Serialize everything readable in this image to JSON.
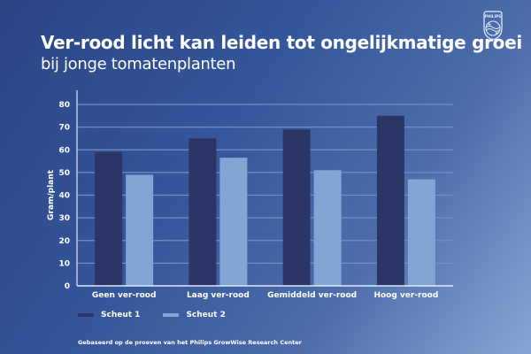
{
  "header": {
    "title": "Ver-rood licht kan leiden tot ongelijkmatige groei",
    "subtitle": "bij jonge tomatenplanten",
    "logo_text": "PHILIPS",
    "logo_icon": "philips-shield-icon"
  },
  "footnote": "Gebaseerd op de proeven van het Philips GrowWise Research Center",
  "colors": {
    "series1": "#2b3566",
    "series2": "#80a7d4",
    "grid": "#6f8fc6",
    "axis": "#dfe8f6"
  },
  "chart_data": {
    "type": "bar",
    "title": "Ver-rood licht kan leiden tot ongelijkmatige groei bij jonge tomatenplanten",
    "xlabel": "",
    "ylabel": "Gram/plant",
    "ylim": [
      0,
      80
    ],
    "yticks": [
      0,
      10,
      20,
      30,
      40,
      50,
      60,
      70,
      80
    ],
    "grid": true,
    "legend_position": "bottom-left",
    "categories": [
      "Geen ver-rood",
      "Laag ver-rood",
      "Gemiddeld ver-rood",
      "Hoog ver-rood"
    ],
    "series": [
      {
        "name": "Scheut 1",
        "values": [
          59,
          65,
          69,
          75
        ]
      },
      {
        "name": "Scheut 2",
        "values": [
          49,
          56.5,
          51,
          47
        ]
      }
    ]
  }
}
